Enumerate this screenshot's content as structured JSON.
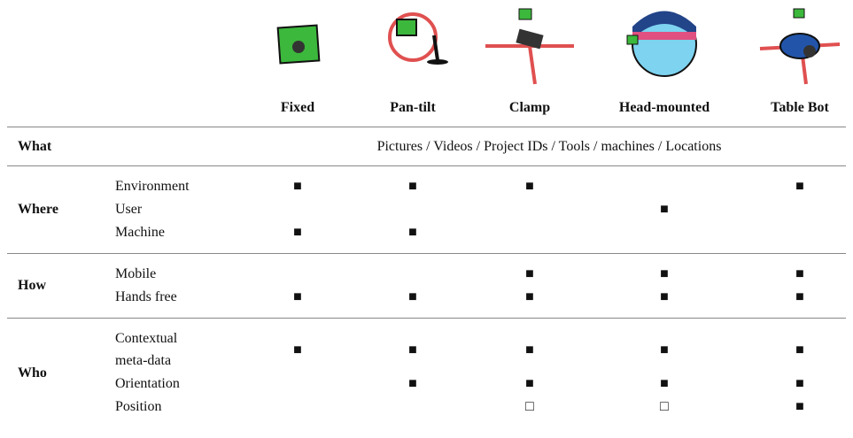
{
  "columns": [
    "Fixed",
    "Pan-tilt",
    "Clamp",
    "Head-mounted",
    "Table Bot"
  ],
  "sections": [
    {
      "group": "What",
      "text": "Pictures / Videos / Project IDs / Tools / machines / Locations"
    },
    {
      "group": "Where",
      "items": [
        {
          "label": [
            "Environment"
          ],
          "marks": [
            "■",
            "■",
            "■",
            null,
            "■"
          ]
        },
        {
          "label": [
            "User"
          ],
          "marks": [
            null,
            null,
            null,
            "■",
            null
          ]
        },
        {
          "label": [
            "Machine"
          ],
          "marks": [
            "■",
            "■",
            null,
            null,
            null
          ]
        }
      ]
    },
    {
      "group": "How",
      "items": [
        {
          "label": [
            "Mobile"
          ],
          "marks": [
            null,
            null,
            "■",
            "■",
            "■"
          ]
        },
        {
          "label": [
            "Hands free"
          ],
          "marks": [
            "■",
            "■",
            "■",
            "■",
            "■"
          ]
        }
      ]
    },
    {
      "group": "Who",
      "items": [
        {
          "label": [
            "Contextual",
            "meta-data"
          ],
          "marks": [
            "■",
            "■",
            "■",
            "■",
            "■"
          ]
        },
        {
          "label": [
            "Orientation"
          ],
          "marks": [
            null,
            "■",
            "■",
            "■",
            "■"
          ]
        },
        {
          "label": [
            "Position"
          ],
          "marks": [
            null,
            null,
            "□",
            "□",
            "■"
          ]
        }
      ]
    }
  ]
}
